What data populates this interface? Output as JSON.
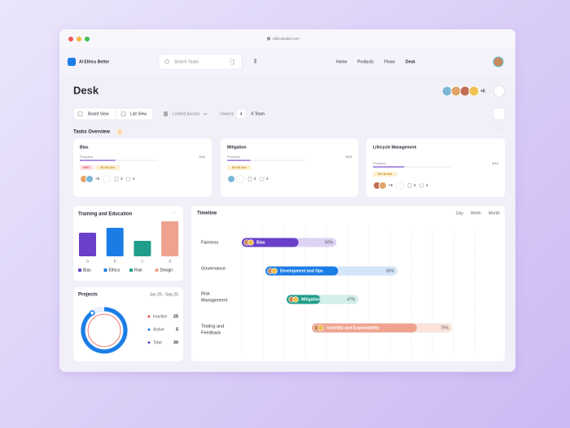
{
  "browser": {
    "url": "ethicsbetter.com"
  },
  "nav": {
    "brand": "AI Ethics Better",
    "search_placeholder": "Search Tasks",
    "links": [
      "Home",
      "Products",
      "Flows",
      "Desk"
    ]
  },
  "header": {
    "title": "Desk",
    "team_extra": "+5"
  },
  "toolbar": {
    "views": [
      "Board View",
      "List View"
    ],
    "access": "Limited Access",
    "owners_label": "Owners",
    "owners_count": "4",
    "team": "X Team"
  },
  "tasks_overview": {
    "title": "Tasks Overview",
    "count": "4",
    "cards": [
      {
        "title": "Bias",
        "progress_label": "Progress",
        "progress": "5/11",
        "tags": [
          "NIST",
          "EU AI Act"
        ],
        "extra_people": "+5",
        "files": "3",
        "comments": "4"
      },
      {
        "title": "Mitigation",
        "progress_label": "Progress",
        "progress": "3/10",
        "tags": [
          "EU AI Act"
        ],
        "files": "2",
        "comments": "4"
      },
      {
        "title": "Lifecycle Management",
        "progress_label": "Progress",
        "progress": "4/10",
        "tags": [
          "EU AI Act"
        ],
        "extra_people": "+6",
        "files": "3",
        "comments": "4"
      }
    ]
  },
  "chart_data": {
    "type": "bar",
    "title": "Training and Education",
    "categories": [
      "a",
      "b",
      "c",
      "d"
    ],
    "values": [
      29,
      35,
      19,
      43
    ],
    "colors": [
      "#6a3fc9",
      "#1a7de6",
      "#1f9e8a",
      "#efa38f"
    ],
    "legend": [
      "Bias",
      "Ethics",
      "Risk",
      "Design"
    ]
  },
  "projects": {
    "title": "Projects",
    "period": "Jan 25 - Sep 25",
    "stats": [
      {
        "label": "Inactive",
        "value": 25,
        "color": "#e5534b"
      },
      {
        "label": "Active",
        "value": 5,
        "color": "#1a7de6"
      },
      {
        "label": "Total",
        "value": 30,
        "color": "#6a3fc9"
      }
    ]
  },
  "timeline": {
    "title": "Timeline",
    "ranges": [
      "Day",
      "Week",
      "Month"
    ],
    "rows": [
      {
        "label": [
          "Fairness"
        ],
        "task": "Bias",
        "percent": {
          "value": 60,
          "label": "60%"
        },
        "color": "#6a3fc9",
        "track": "#ddd3f5"
      },
      {
        "label": [
          "Governance"
        ],
        "task": "Development and Ops",
        "percent": {
          "value": 55,
          "label": "55%"
        },
        "color": "#1a7de6",
        "track": "#d3e5fa"
      },
      {
        "label": [
          "Risk",
          "Management"
        ],
        "task": "Mitigation",
        "percent": {
          "value": 47,
          "label": "47%"
        },
        "color": "#1f9e8a",
        "track": "#d2efe9"
      },
      {
        "label": [
          "Testing and",
          "Feedback"
        ],
        "task": "Usability and Explainability",
        "percent": {
          "value": 75,
          "label": "75%"
        },
        "color": "#efa38f",
        "track": "#fbe3dc"
      }
    ]
  }
}
